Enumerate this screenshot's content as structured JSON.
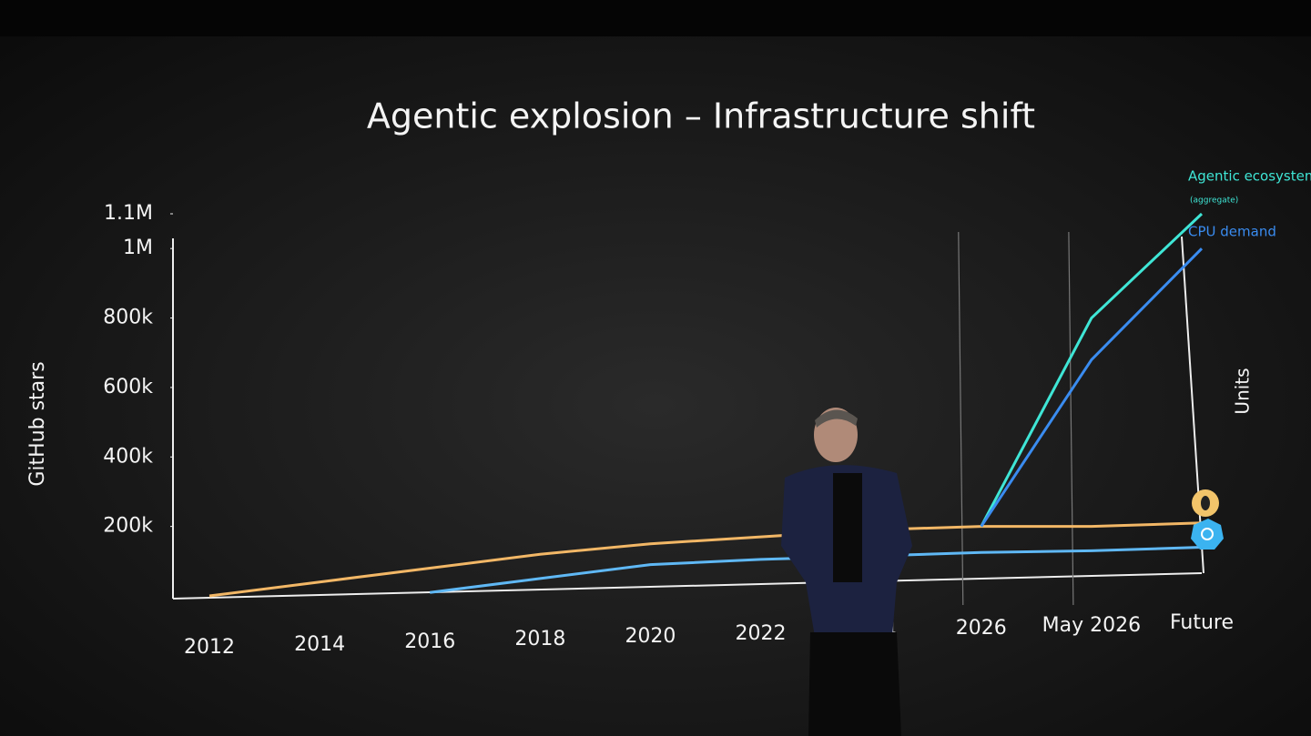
{
  "chart_data": {
    "type": "line",
    "title": "Agentic explosion – Infrastructure shift",
    "y_label": "GitHub stars",
    "y2_label": "Units",
    "categories": [
      "2012",
      "2014",
      "2016",
      "2018",
      "2020",
      "2022",
      "2024",
      "2026",
      "May 2026",
      "Future"
    ],
    "ylim": [
      0,
      1100000
    ],
    "yticks": [
      {
        "value": 200000,
        "label": "200k"
      },
      {
        "value": 400000,
        "label": "400k"
      },
      {
        "value": 600000,
        "label": "600k"
      },
      {
        "value": 800000,
        "label": "800k"
      },
      {
        "value": 1000000,
        "label": "1M"
      },
      {
        "value": 1100000,
        "label": "1.1M"
      }
    ],
    "series": [
      {
        "color": "#f2b766",
        "values": [
          0,
          40000,
          80000,
          120000,
          150000,
          170000,
          190000,
          200000,
          200000,
          210000
        ]
      },
      {
        "color": "#5fb8f5",
        "values": [
          null,
          null,
          10000,
          50000,
          90000,
          105000,
          115000,
          125000,
          130000,
          140000
        ]
      },
      {
        "name": "Agentic ecosystem",
        "note": "(aggregate)",
        "color": "#3fe6d6",
        "values": [
          null,
          null,
          null,
          null,
          null,
          null,
          null,
          200000,
          800000,
          1100000
        ]
      },
      {
        "name": "CPU demand",
        "color": "#3a8cf0",
        "values": [
          null,
          null,
          null,
          null,
          null,
          null,
          null,
          200000,
          680000,
          1000000
        ]
      }
    ]
  }
}
